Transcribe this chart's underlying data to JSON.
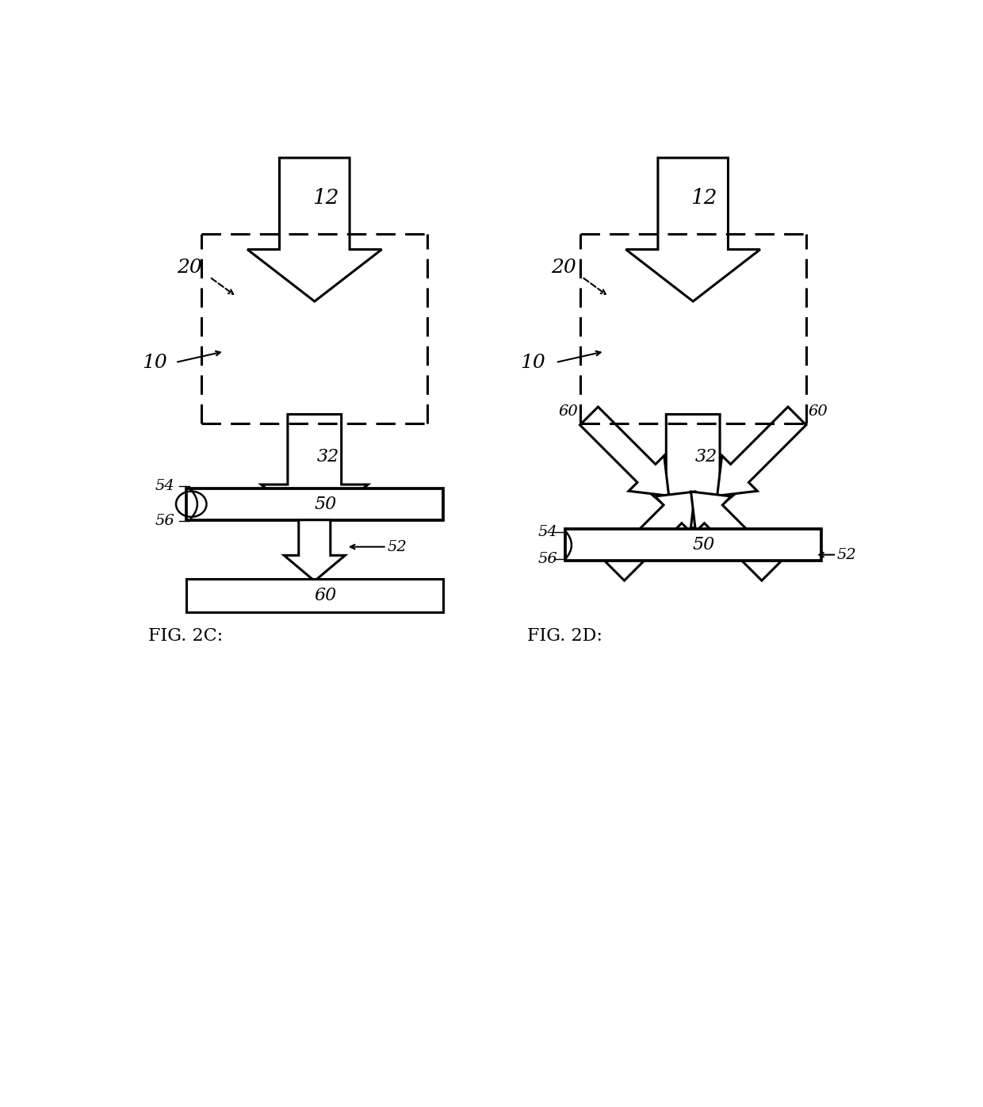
{
  "bg_color": "#ffffff",
  "line_color": "#000000",
  "fig_width": 12.4,
  "fig_height": 13.96
}
